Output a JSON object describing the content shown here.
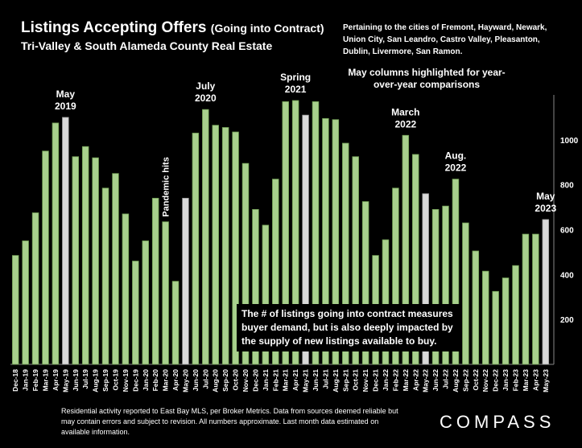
{
  "header": {
    "title_main": "Listings Accepting Offers",
    "title_sub": "(Going into Contract)",
    "subtitle": "Tri-Valley & South Alameda County Real Estate",
    "cities_note": "Pertaining to the cities of Fremont, Hayward, Newark, Union City, San Leandro, Castro Valley, Pleasanton, Dublin, Livermore, San Ramon.",
    "may_note": "May columns highlighted for year-over-year comparisons"
  },
  "callout": "The # of listings going into contract measures buyer demand, but is also deeply impacted by the supply of new listings available to buy.",
  "footnote": "Residential activity reported to East Bay MLS, per Broker Metrics. Data from sources deemed reliable but may contain errors and subject to revision.  All numbers approximate. Last month data estimated on available information.",
  "logo": "COMPASS",
  "colors": {
    "bar": "#a8d08d",
    "bar_edge": "#6e9a52",
    "highlight": "#d9d9d9",
    "background": "#000000",
    "grid": "#333333"
  },
  "chart_data": {
    "type": "bar",
    "categories": [
      "Dec-18",
      "Jan-19",
      "Feb-19",
      "Mar-19",
      "Apr-19",
      "May-19",
      "Jun-19",
      "Jul-19",
      "Aug-19",
      "Sep-19",
      "Oct-19",
      "Nov-19",
      "Dec-19",
      "Jan-20",
      "Feb-20",
      "Mar-20",
      "Apr-20",
      "May-20",
      "Jun-20",
      "Jul-20",
      "Aug-20",
      "Sep-20",
      "Oct-20",
      "Nov-20",
      "Dec-20",
      "Jan-21",
      "Feb-21",
      "Mar-21",
      "Apr-21",
      "May-21",
      "Jun-21",
      "Jul-21",
      "Aug-21",
      "Sep-21",
      "Oct-21",
      "Nov-21",
      "Dec-21",
      "Jan-22",
      "Feb-22",
      "Mar-22",
      "Apr-22",
      "May-22",
      "Jun-22",
      "Jul-22",
      "Aug-22",
      "Sep-22",
      "Oct-22",
      "Nov-22",
      "Dec-22",
      "Jan-23",
      "Feb-23",
      "Mar-23",
      "Apr-23",
      "May-23"
    ],
    "values": [
      485,
      550,
      675,
      950,
      1075,
      1100,
      925,
      970,
      920,
      785,
      850,
      670,
      460,
      550,
      740,
      635,
      370,
      740,
      1030,
      1135,
      1065,
      1055,
      1035,
      895,
      690,
      620,
      825,
      1170,
      1175,
      1110,
      1170,
      1095,
      1090,
      985,
      925,
      725,
      485,
      555,
      785,
      1020,
      935,
      760,
      690,
      705,
      825,
      630,
      505,
      415,
      325,
      385,
      440,
      580,
      580,
      645
    ],
    "highlighted": [
      "May-19",
      "May-20",
      "May-21",
      "May-22",
      "May-23"
    ],
    "ylim": [
      0,
      1200
    ],
    "yticks": [
      200,
      400,
      600,
      800,
      1000
    ],
    "y_axis_side": "right",
    "grid": false,
    "annotations": [
      {
        "label": "May\n2019",
        "category": "May-19"
      },
      {
        "label": "Pandemic hits",
        "category": "Mar-20",
        "rotated": true
      },
      {
        "label": "July\n2020",
        "category": "Jul-20"
      },
      {
        "label": "Spring\n2021",
        "category": "Apr-21"
      },
      {
        "label": "March\n2022",
        "category": "Mar-22"
      },
      {
        "label": "Aug.\n2022",
        "category": "Aug-22"
      },
      {
        "label": "May\n2023",
        "category": "May-23"
      }
    ]
  }
}
